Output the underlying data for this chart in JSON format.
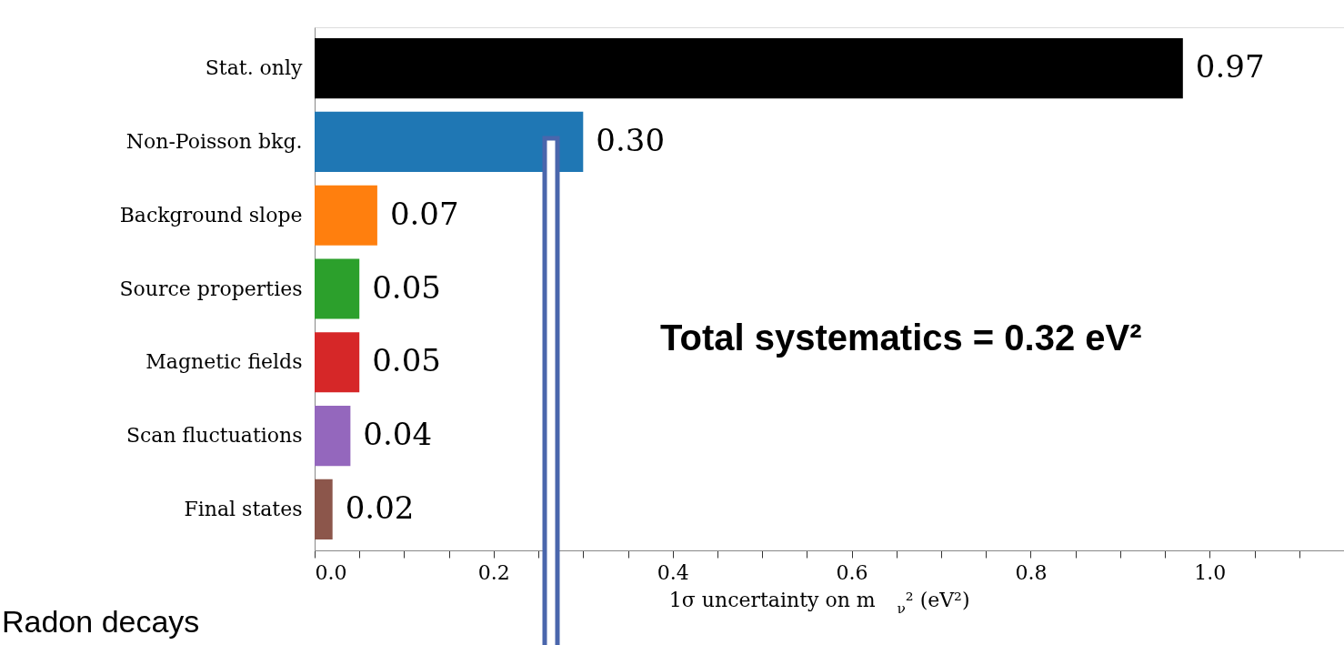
{
  "chart_data": {
    "type": "bar",
    "orientation": "horizontal",
    "categories": [
      "Stat. only",
      "Non-Poisson bkg.",
      "Background slope",
      "Source properties",
      "Magnetic fields",
      "Scan fluctuations",
      "Final states"
    ],
    "values": [
      0.97,
      0.3,
      0.07,
      0.05,
      0.05,
      0.04,
      0.02
    ],
    "value_labels": [
      "0.97",
      "0.30",
      "0.07",
      "0.05",
      "0.05",
      "0.04",
      "0.02"
    ],
    "colors": [
      "#000000",
      "#1f77b4",
      "#ff7f0e",
      "#2ca02c",
      "#d62728",
      "#9467bd",
      "#8c564b"
    ],
    "xlabel": "1σ uncertainty on m$_{ν}$² (eV²)",
    "xlim": [
      0,
      1.15
    ],
    "xticks": [
      {
        "value": 0,
        "label": "0.0"
      },
      {
        "value": 0.05,
        "label": null
      },
      {
        "value": 0.1,
        "label": null
      },
      {
        "value": 0.15,
        "label": null
      },
      0.2,
      {
        "value": 0.25,
        "label": null
      },
      {
        "value": 0.3,
        "label": null
      },
      {
        "value": 0.35,
        "label": null
      },
      0.4,
      {
        "value": 0.45,
        "label": null
      },
      {
        "value": 0.5,
        "label": null
      },
      {
        "value": 0.55,
        "label": null
      },
      0.6,
      {
        "value": 0.65,
        "label": null
      },
      {
        "value": 0.7,
        "label": null
      },
      {
        "value": 0.75,
        "label": null
      },
      0.8,
      {
        "value": 0.85,
        "label": null
      },
      {
        "value": 0.9,
        "label": null
      },
      {
        "value": 0.95,
        "label": null
      },
      {
        "value": 1.0,
        "label": "1.0"
      },
      {
        "value": 1.05,
        "label": null
      },
      {
        "value": 1.1,
        "label": null
      },
      {
        "value": 1.15,
        "label": null
      }
    ],
    "annotations": [
      "Total systematics = 0.32 eV²",
      "Radon decays"
    ],
    "grid": false,
    "legend": false
  }
}
